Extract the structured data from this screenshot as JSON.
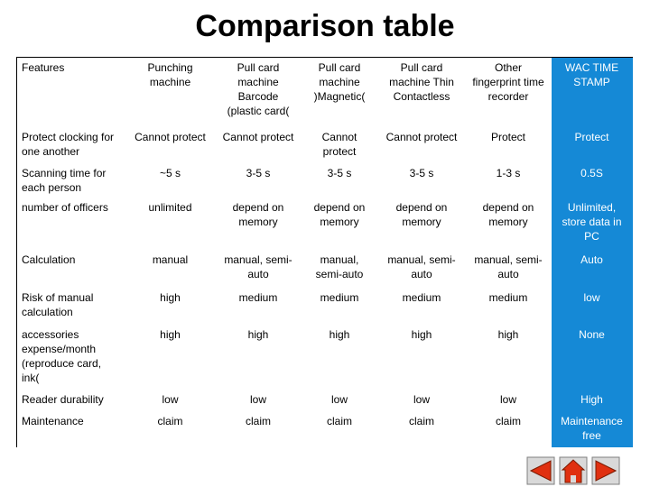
{
  "title": "Comparison table",
  "table": {
    "header": [
      "Features",
      "Punching machine",
      "Pull card machine Barcode (plastic card(",
      "Pull card machine )Magnetic(",
      "Pull card machine Thin Contactless",
      "Other fingerprint time recorder",
      "WAC TIME STAMP"
    ],
    "rows": [
      [
        "Protect clocking for one another",
        "Cannot protect",
        "Cannot protect",
        "Cannot protect",
        "Cannot protect",
        "Protect",
        "Protect"
      ],
      [
        "Scanning time for each person",
        "~5 s",
        "3-5 s",
        "3-5 s",
        "3-5 s",
        "1-3 s",
        "0.5S"
      ],
      [
        "number of officers",
        "unlimited",
        "depend on memory",
        "depend on memory",
        "depend on memory",
        "depend on memory",
        "Unlimited, store data in PC"
      ],
      [
        "Calculation",
        "manual",
        "manual, semi-auto",
        "manual, semi-auto",
        "manual, semi-auto",
        "manual, semi-auto",
        "Auto"
      ],
      [
        "Risk of manual calculation",
        "high",
        "medium",
        "medium",
        "medium",
        "medium",
        "low"
      ],
      [
        "accessories expense/month (reproduce card, ink(",
        "high",
        "high",
        "high",
        "high",
        "high",
        "None"
      ],
      [
        "Reader durability",
        "low",
        "low",
        "low",
        "low",
        "low",
        "High"
      ],
      [
        "Maintenance",
        "claim",
        "claim",
        "claim",
        "claim",
        "claim",
        "Maintenance free"
      ]
    ]
  }
}
